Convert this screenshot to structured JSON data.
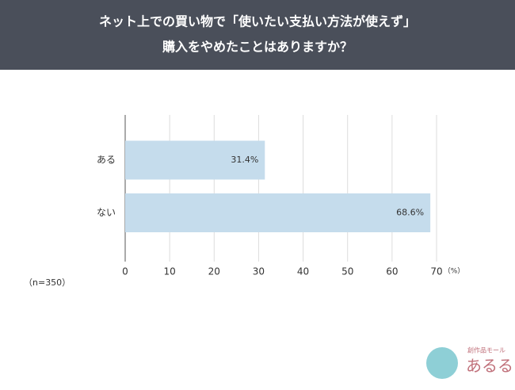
{
  "chart_data": {
    "type": "hbar",
    "title": [
      "ネット上での買い物で「使いたい支払い方法が使えず」",
      "購入をやめたことはありますか？"
    ],
    "categories": [
      "ある",
      "ない"
    ],
    "values": [
      31.4,
      68.6
    ],
    "value_labels": [
      "31.4%",
      "68.6%"
    ],
    "color": "#c5dcec",
    "xlim": [
      0,
      70
    ],
    "xticks": [
      0,
      10,
      20,
      30,
      40,
      50,
      60,
      70
    ],
    "x_unit": "（%）",
    "note": "（n=350）",
    "grid": true
  },
  "logo": {
    "tagline": "創作品モール",
    "name": "あるる"
  }
}
